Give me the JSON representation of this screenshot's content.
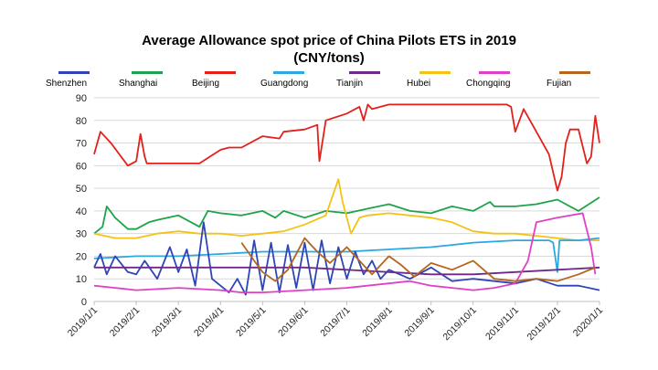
{
  "title": "Average Allowance spot price of China Pilots ETS in 2019",
  "subtitle": "(CNY/tons)",
  "colors": {
    "Shenzhen": "#2e45b8",
    "Shanghai": "#1fa34a",
    "Beijing": "#e3211c",
    "Guangdong": "#29a9e0",
    "Tianjin": "#6b2b86",
    "Hubei": "#f2c314",
    "Chongqing": "#e040c8",
    "Fujian": "#b5651d"
  },
  "chart_data": {
    "type": "line",
    "title": "Average Allowance spot price of China Pilots ETS in 2019",
    "subtitle": "(CNY/tons)",
    "xlabel": "",
    "ylabel": "",
    "ylim": [
      0,
      90
    ],
    "yticks": [
      0,
      10,
      20,
      30,
      40,
      50,
      60,
      70,
      80,
      90
    ],
    "xticks": [
      "2019/1/1",
      "2019/2/1",
      "2019/3/1",
      "2019/4/1",
      "2019/5/1",
      "2019/6/1",
      "2019/7/1",
      "2019/8/1",
      "2019/9/1",
      "2019/10/1",
      "2019/11/1",
      "2019/12/1",
      "2020/1/1"
    ],
    "legend_labels": [
      "Shenzhen",
      "Shanghai",
      "Beijing",
      "Guangdong",
      "Tianjin",
      "Hubei",
      "Chongqing",
      "Fujian"
    ],
    "legend_position": "top",
    "series": [
      {
        "name": "Beijing",
        "x": [
          0,
          0.15,
          0.4,
          0.8,
          1.0,
          1.1,
          1.2,
          1.25,
          1.5,
          2,
          2.5,
          3,
          3.2,
          3.5,
          4,
          4.4,
          4.5,
          5,
          5.3,
          5.35,
          5.5,
          6,
          6.3,
          6.4,
          6.5,
          6.6,
          7,
          8,
          9,
          9.8,
          9.9,
          10,
          10.2,
          10.5,
          10.8,
          11,
          11.1,
          11.2,
          11.3,
          11.5,
          11.7,
          11.8,
          11.9,
          12.0
        ],
        "values": [
          65,
          75,
          70,
          60,
          62,
          74,
          64,
          61,
          61,
          61,
          61,
          67,
          68,
          68,
          73,
          72,
          75,
          76,
          78,
          62,
          80,
          83,
          86,
          80,
          87,
          85,
          87,
          87,
          87,
          87,
          86,
          75,
          85,
          75,
          65,
          49,
          55,
          70,
          76,
          76,
          61,
          64,
          82,
          70
        ]
      },
      {
        "name": "Shanghai",
        "x": [
          0,
          0.2,
          0.3,
          0.5,
          0.8,
          1.0,
          1.3,
          1.5,
          2,
          2.5,
          2.7,
          3,
          3.5,
          4,
          4.3,
          4.5,
          5,
          5.5,
          6,
          6.5,
          7,
          7.5,
          8,
          8.5,
          9,
          9.4,
          9.5,
          10,
          10.5,
          11,
          11.5,
          12.0
        ],
        "values": [
          30,
          33,
          42,
          37,
          32,
          32,
          35,
          36,
          38,
          33,
          40,
          39,
          38,
          40,
          37,
          40,
          37,
          40,
          39,
          41,
          43,
          40,
          39,
          42,
          40,
          44,
          42,
          42,
          43,
          45,
          40,
          46
        ]
      },
      {
        "name": "Hubei",
        "x": [
          0,
          0.5,
          1,
          1.5,
          2,
          2.5,
          3,
          3.5,
          4,
          4.5,
          5,
          5.5,
          5.8,
          5.9,
          6.1,
          6.3,
          6.5,
          7,
          7.5,
          8,
          8.5,
          9,
          9.5,
          10,
          10.5,
          11,
          11.5,
          12.0
        ],
        "values": [
          30,
          28,
          28,
          30,
          31,
          30,
          30,
          29,
          30,
          31,
          34,
          38,
          54,
          44,
          30,
          37,
          38,
          39,
          38,
          37,
          35,
          31,
          30,
          30,
          29,
          28,
          27,
          27
        ]
      },
      {
        "name": "Guangdong",
        "x": [
          0,
          1,
          2,
          3,
          4,
          5,
          6,
          7,
          8,
          8.5,
          9,
          10,
          10.8,
          10.9,
          11.0,
          11.05,
          11.5,
          12.0
        ],
        "values": [
          19,
          20,
          20,
          21,
          22,
          22,
          22,
          23,
          24,
          25,
          26,
          27,
          27,
          26,
          13,
          27,
          27,
          28
        ]
      },
      {
        "name": "Shenzhen",
        "x": [
          0,
          0.15,
          0.3,
          0.5,
          0.8,
          1.0,
          1.2,
          1.5,
          1.8,
          2.0,
          2.2,
          2.4,
          2.6,
          2.8,
          3.0,
          3.2,
          3.4,
          3.6,
          3.8,
          4.0,
          4.2,
          4.4,
          4.6,
          4.8,
          5.0,
          5.2,
          5.4,
          5.6,
          5.8,
          6.0,
          6.2,
          6.4,
          6.6,
          6.8,
          7.0,
          7.5,
          8.0,
          8.5,
          9.0,
          9.5,
          10.0,
          10.5,
          11.0,
          11.5,
          12.0
        ],
        "values": [
          15,
          21,
          12,
          20,
          13,
          12,
          18,
          10,
          24,
          13,
          23,
          7,
          35,
          10,
          7,
          4,
          10,
          3,
          27,
          5,
          26,
          4,
          25,
          6,
          26,
          5,
          27,
          8,
          24,
          10,
          22,
          12,
          18,
          10,
          14,
          10,
          15,
          9,
          10,
          9,
          8,
          10,
          7,
          7,
          5
        ]
      },
      {
        "name": "Tianjin",
        "x": [
          0,
          1,
          2,
          3,
          4,
          5,
          6,
          7,
          8,
          9,
          10,
          11,
          12.0
        ],
        "values": [
          15,
          15,
          15,
          15,
          15,
          15,
          14,
          13,
          12,
          12,
          13,
          14,
          15
        ]
      },
      {
        "name": "Chongqing",
        "x": [
          0,
          0.5,
          1,
          2,
          3,
          3.5,
          4,
          5,
          6,
          7,
          7.5,
          8,
          8.5,
          9,
          9.5,
          10,
          10.3,
          10.5,
          11.0,
          11.6,
          11.8,
          11.9
        ],
        "values": [
          7,
          6,
          5,
          6,
          5,
          4,
          4,
          5,
          6,
          8,
          9,
          7,
          6,
          5,
          6,
          8,
          18,
          35,
          37,
          39,
          24,
          12
        ]
      },
      {
        "name": "Fujian",
        "x": [
          3.5,
          3.8,
          4.0,
          4.3,
          4.6,
          5.0,
          5.3,
          5.6,
          6.0,
          6.3,
          6.6,
          7.0,
          7.3,
          7.6,
          8.0,
          8.5,
          9.0,
          9.5,
          10.0,
          10.5,
          11.0,
          11.5,
          11.9
        ],
        "values": [
          26,
          18,
          13,
          9,
          14,
          28,
          22,
          17,
          24,
          18,
          12,
          20,
          16,
          11,
          17,
          14,
          18,
          10,
          9,
          10,
          9,
          12,
          15
        ]
      }
    ]
  }
}
